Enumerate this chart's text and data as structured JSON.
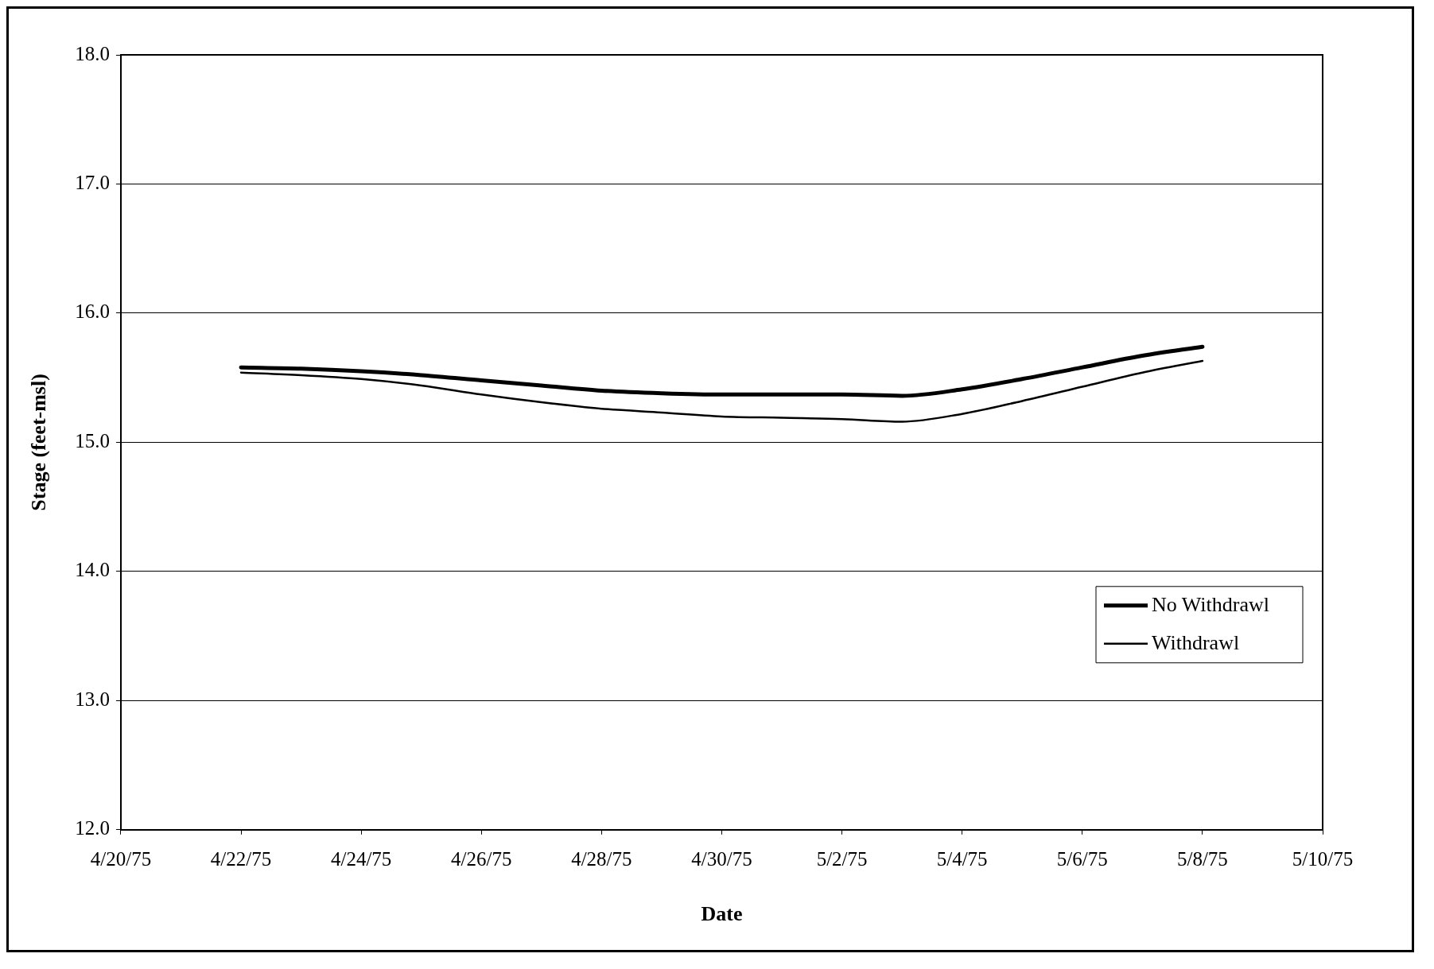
{
  "chart_data": {
    "type": "line",
    "xlabel": "Date",
    "ylabel": "Stage (feet-msl)",
    "x": [
      "1975-04-22",
      "1975-04-23",
      "1975-04-24",
      "1975-04-25",
      "1975-04-26",
      "1975-04-27",
      "1975-04-28",
      "1975-04-29",
      "1975-04-30",
      "1975-05-01",
      "1975-05-02",
      "1975-05-03",
      "1975-05-04",
      "1975-05-05",
      "1975-05-06",
      "1975-05-07",
      "1975-05-08"
    ],
    "series": [
      {
        "name": "No Withdrawl",
        "color": "#000000",
        "values": [
          15.58,
          15.57,
          15.55,
          15.52,
          15.48,
          15.44,
          15.4,
          15.38,
          15.37,
          15.37,
          15.37,
          15.36,
          15.41,
          15.49,
          15.58,
          15.67,
          15.74
        ]
      },
      {
        "name": "Withdrawl",
        "color": "#000000",
        "values": [
          15.54,
          15.52,
          15.49,
          15.44,
          15.37,
          15.31,
          15.26,
          15.23,
          15.2,
          15.19,
          15.18,
          15.16,
          15.22,
          15.32,
          15.43,
          15.54,
          15.63
        ]
      }
    ],
    "xlim": [
      "1975-04-20",
      "1975-05-10"
    ],
    "xticks": [
      {
        "value": "1975-04-20",
        "label": "4/20/75"
      },
      {
        "value": "1975-04-22",
        "label": "4/22/75"
      },
      {
        "value": "1975-04-24",
        "label": "4/24/75"
      },
      {
        "value": "1975-04-26",
        "label": "4/26/75"
      },
      {
        "value": "1975-04-28",
        "label": "4/28/75"
      },
      {
        "value": "1975-04-30",
        "label": "4/30/75"
      },
      {
        "value": "1975-05-02",
        "label": "5/2/75"
      },
      {
        "value": "1975-05-04",
        "label": "5/4/75"
      },
      {
        "value": "1975-05-06",
        "label": "5/6/75"
      },
      {
        "value": "1975-05-08",
        "label": "5/8/75"
      },
      {
        "value": "1975-05-10",
        "label": "5/10/75"
      }
    ],
    "ylim": [
      12,
      18
    ],
    "yticks": [
      {
        "value": 12,
        "label": "12.0"
      },
      {
        "value": 13,
        "label": "13.0"
      },
      {
        "value": 14,
        "label": "14.0"
      },
      {
        "value": 15,
        "label": "15.0"
      },
      {
        "value": 16,
        "label": "16.0"
      },
      {
        "value": 17,
        "label": "17.0"
      },
      {
        "value": 18,
        "label": "18.0"
      }
    ],
    "grid": "y",
    "legend": "bottom right",
    "marker": "none",
    "line_style": "solid"
  }
}
